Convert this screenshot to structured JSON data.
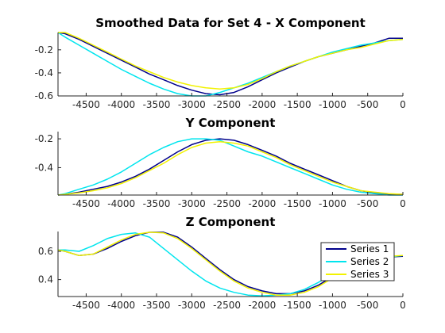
{
  "chart_data": [
    {
      "type": "line",
      "title": "Smoothed Data for Set 4 - X Component",
      "xlim": [
        -4900,
        0
      ],
      "ylim": [
        -0.6,
        -0.05
      ],
      "xticks": [
        -4500,
        -4000,
        -3500,
        -3000,
        -2500,
        -2000,
        -1500,
        -1000,
        -500,
        0
      ],
      "xtick_labels": [
        "-4500",
        "-4000",
        "-3500",
        "-3000",
        "-2500",
        "-2000",
        "-1500",
        "-1000",
        "-500",
        "0"
      ],
      "yticks": [
        -0.6,
        -0.4,
        -0.2
      ],
      "ytick_labels": [
        "-0.6",
        "-0.4",
        "-0.2"
      ],
      "x": [
        -4900,
        -4800,
        -4600,
        -4400,
        -4200,
        -4000,
        -3800,
        -3600,
        -3400,
        -3200,
        -3000,
        -2800,
        -2600,
        -2400,
        -2200,
        -2000,
        -1800,
        -1600,
        -1400,
        -1200,
        -1000,
        -800,
        -600,
        -400,
        -200,
        0
      ],
      "series": [
        {
          "name": "Series 1",
          "color": "#00008B",
          "values": [
            -0.05,
            -0.06,
            -0.11,
            -0.17,
            -0.23,
            -0.29,
            -0.35,
            -0.41,
            -0.46,
            -0.51,
            -0.55,
            -0.58,
            -0.59,
            -0.57,
            -0.52,
            -0.46,
            -0.4,
            -0.35,
            -0.3,
            -0.26,
            -0.23,
            -0.2,
            -0.17,
            -0.14,
            -0.1,
            -0.1
          ]
        },
        {
          "name": "Series 2",
          "color": "#00E5EE",
          "values": [
            -0.05,
            -0.09,
            -0.16,
            -0.23,
            -0.3,
            -0.37,
            -0.43,
            -0.49,
            -0.54,
            -0.58,
            -0.6,
            -0.6,
            -0.57,
            -0.53,
            -0.49,
            -0.44,
            -0.39,
            -0.34,
            -0.3,
            -0.26,
            -0.22,
            -0.19,
            -0.16,
            -0.14,
            -0.12,
            -0.11
          ]
        },
        {
          "name": "Series 3",
          "color": "#F2F200",
          "values": [
            -0.05,
            -0.05,
            -0.1,
            -0.16,
            -0.22,
            -0.28,
            -0.34,
            -0.39,
            -0.44,
            -0.48,
            -0.51,
            -0.53,
            -0.54,
            -0.53,
            -0.5,
            -0.45,
            -0.39,
            -0.34,
            -0.3,
            -0.26,
            -0.23,
            -0.2,
            -0.18,
            -0.15,
            -0.12,
            -0.11
          ]
        }
      ]
    },
    {
      "type": "line",
      "title": "Y Component",
      "xlim": [
        -4900,
        0
      ],
      "ylim": [
        -0.59,
        -0.15
      ],
      "xticks": [
        -4500,
        -4000,
        -3500,
        -3000,
        -2500,
        -2000,
        -1500,
        -1000,
        -500,
        0
      ],
      "xtick_labels": [
        "-4500",
        "-4000",
        "-3500",
        "-3000",
        "-2500",
        "-2000",
        "-1500",
        "-1000",
        "-500",
        "0"
      ],
      "yticks": [
        -0.4,
        -0.2
      ],
      "ytick_labels": [
        "-0.4",
        "-0.2"
      ],
      "x": [
        -4900,
        -4800,
        -4600,
        -4400,
        -4200,
        -4000,
        -3800,
        -3600,
        -3400,
        -3200,
        -3000,
        -2800,
        -2600,
        -2400,
        -2200,
        -2000,
        -1800,
        -1600,
        -1400,
        -1200,
        -1000,
        -800,
        -600,
        -400,
        -200,
        0
      ],
      "series": [
        {
          "name": "Series 1",
          "color": "#00008B",
          "values": [
            -0.59,
            -0.585,
            -0.57,
            -0.55,
            -0.53,
            -0.5,
            -0.46,
            -0.41,
            -0.35,
            -0.29,
            -0.24,
            -0.21,
            -0.2,
            -0.21,
            -0.24,
            -0.28,
            -0.32,
            -0.37,
            -0.41,
            -0.45,
            -0.49,
            -0.53,
            -0.56,
            -0.575,
            -0.585,
            -0.585
          ]
        },
        {
          "name": "Series 2",
          "color": "#00E5EE",
          "values": [
            -0.59,
            -0.58,
            -0.55,
            -0.52,
            -0.48,
            -0.43,
            -0.37,
            -0.31,
            -0.26,
            -0.22,
            -0.2,
            -0.2,
            -0.21,
            -0.25,
            -0.29,
            -0.32,
            -0.36,
            -0.4,
            -0.44,
            -0.48,
            -0.52,
            -0.55,
            -0.57,
            -0.58,
            -0.59,
            -0.59
          ]
        },
        {
          "name": "Series 3",
          "color": "#F2F200",
          "values": [
            -0.59,
            -0.585,
            -0.575,
            -0.56,
            -0.54,
            -0.51,
            -0.47,
            -0.42,
            -0.37,
            -0.31,
            -0.26,
            -0.23,
            -0.22,
            -0.23,
            -0.25,
            -0.29,
            -0.33,
            -0.38,
            -0.42,
            -0.46,
            -0.5,
            -0.53,
            -0.56,
            -0.57,
            -0.58,
            -0.585
          ]
        }
      ]
    },
    {
      "type": "line",
      "title": "Z Component",
      "xlim": [
        -4900,
        0
      ],
      "ylim": [
        0.28,
        0.74
      ],
      "xticks": [
        -4500,
        -4000,
        -3500,
        -3000,
        -2500,
        -2000,
        -1500,
        -1000,
        -500,
        0
      ],
      "xtick_labels": [
        "-4500",
        "-4000",
        "-3500",
        "-3000",
        "-2500",
        "-2000",
        "-1500",
        "-1000",
        "-500",
        "0"
      ],
      "yticks": [
        0.4,
        0.6
      ],
      "ytick_labels": [
        "0.4",
        "0.6"
      ],
      "legend_position": "top-right",
      "x": [
        -4900,
        -4800,
        -4600,
        -4400,
        -4200,
        -4000,
        -3800,
        -3600,
        -3400,
        -3200,
        -3000,
        -2800,
        -2600,
        -2400,
        -2200,
        -2000,
        -1800,
        -1600,
        -1400,
        -1200,
        -1000,
        -800,
        -600,
        -400,
        -200,
        0
      ],
      "series": [
        {
          "name": "Series 1",
          "color": "#00008B",
          "values": [
            0.61,
            0.6,
            0.57,
            0.58,
            0.62,
            0.67,
            0.71,
            0.735,
            0.735,
            0.7,
            0.63,
            0.55,
            0.47,
            0.4,
            0.35,
            0.32,
            0.3,
            0.3,
            0.32,
            0.36,
            0.42,
            0.48,
            0.52,
            0.55,
            0.56,
            0.565
          ]
        },
        {
          "name": "Series 2",
          "color": "#00E5EE",
          "values": [
            0.61,
            0.61,
            0.6,
            0.64,
            0.69,
            0.72,
            0.73,
            0.7,
            0.62,
            0.54,
            0.46,
            0.39,
            0.34,
            0.31,
            0.29,
            0.285,
            0.29,
            0.3,
            0.33,
            0.38,
            0.44,
            0.49,
            0.53,
            0.55,
            0.56,
            0.57
          ]
        },
        {
          "name": "Series 3",
          "color": "#F2F200",
          "values": [
            0.61,
            0.6,
            0.57,
            0.58,
            0.63,
            0.68,
            0.72,
            0.735,
            0.73,
            0.69,
            0.62,
            0.54,
            0.46,
            0.39,
            0.34,
            0.31,
            0.29,
            0.29,
            0.31,
            0.35,
            0.41,
            0.47,
            0.52,
            0.55,
            0.565,
            0.57
          ]
        }
      ]
    }
  ],
  "legend": {
    "entries": [
      {
        "label": "Series 1",
        "color": "#00008B"
      },
      {
        "label": "Series 2",
        "color": "#00E5EE"
      },
      {
        "label": "Series 3",
        "color": "#F2F200"
      }
    ]
  }
}
